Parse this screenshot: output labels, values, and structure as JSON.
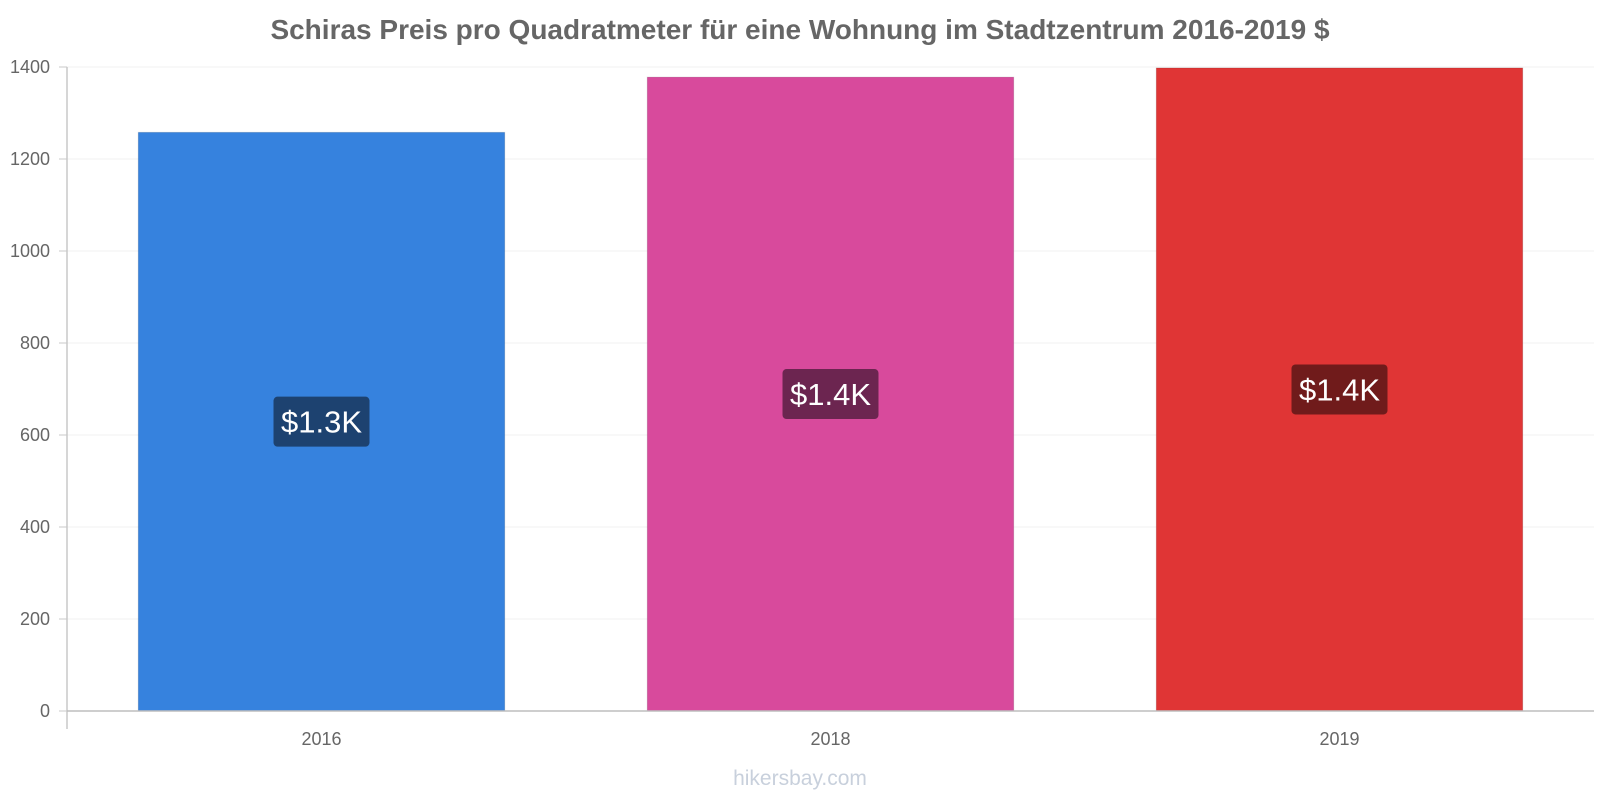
{
  "chart_data": {
    "type": "bar",
    "title": "Schiras Preis pro Quadratmeter für eine Wohnung im Stadtzentrum 2016-2019 $",
    "xlabel": "",
    "ylabel": "",
    "categories": [
      "2016",
      "2018",
      "2019"
    ],
    "values": [
      1258,
      1378,
      1398
    ],
    "data_labels": [
      "$1.3K",
      "$1.4K",
      "$1.4K"
    ],
    "colors": [
      "#3682de",
      "#d84a9c",
      "#e03535"
    ],
    "label_bg_colors": [
      "#1d4270",
      "#6c2550",
      "#701b1b"
    ],
    "ylim": [
      0,
      1400
    ],
    "yticks": [
      "0",
      "200",
      "400",
      "600",
      "800",
      "1000",
      "1200",
      "1400"
    ],
    "grid": true,
    "legend": "none"
  },
  "watermark": "hikersbay.com"
}
